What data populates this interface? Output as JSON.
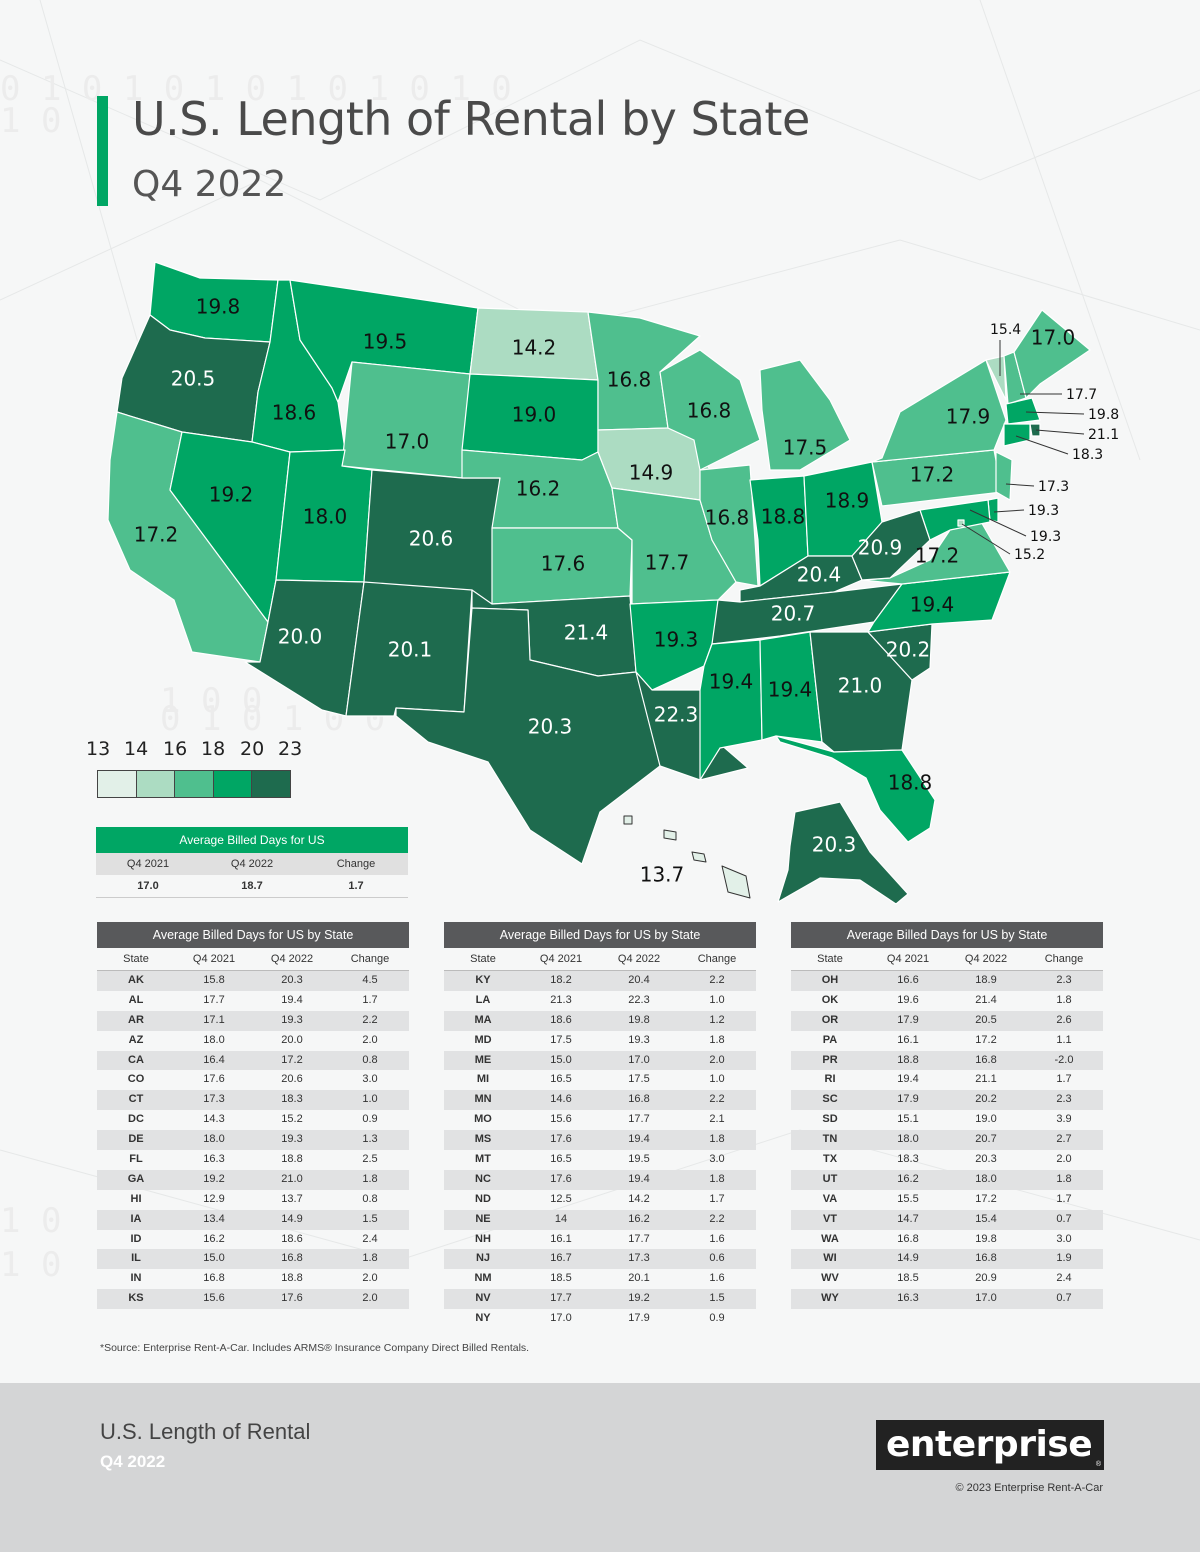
{
  "title": "U.S. Length of Rental by State",
  "subtitle": "Q4 2022",
  "colors": {
    "accent": "#00a664",
    "bin1": "#e2f0e8",
    "bin2": "#acdcc2",
    "bin3": "#4fbf8e",
    "bin4": "#00a664",
    "bin5": "#1e6b4e",
    "table_header": "#58595b"
  },
  "legend": {
    "values": [
      "13",
      "14",
      "16",
      "18",
      "20",
      "23"
    ]
  },
  "map": {
    "labels": {
      "WA": "19.8",
      "OR": "20.5",
      "CA": "17.2",
      "ID": "18.6",
      "NV": "19.2",
      "MT": "19.5",
      "WY": "17.0",
      "UT": "18.0",
      "AZ": "20.0",
      "CO": "20.6",
      "NM": "20.1",
      "ND": "14.2",
      "SD": "19.0",
      "NE": "16.2",
      "KS": "17.6",
      "OK": "21.4",
      "TX": "20.3",
      "MN": "16.8",
      "IA": "14.9",
      "MO": "17.7",
      "AR": "19.3",
      "LA": "22.3",
      "WI": "16.8",
      "IL": "16.8",
      "MI": "17.5",
      "IN": "18.8",
      "OH": "18.9",
      "KY": "20.4",
      "TN": "20.7",
      "MS": "19.4",
      "AL": "19.4",
      "GA": "21.0",
      "FL": "18.8",
      "SC": "20.2",
      "NC": "19.4",
      "VA": "17.2",
      "WV": "20.9",
      "PA": "17.2",
      "NY": "17.9",
      "VT": "15.4",
      "ME": "17.0",
      "NH": "17.7",
      "MA": "19.8",
      "RI": "21.1",
      "CT": "18.3",
      "NJ": "17.3",
      "DE": "19.3",
      "MD": "19.3",
      "DC": "15.2",
      "AK": "20.3",
      "HI": "13.7"
    }
  },
  "us_summary": {
    "title": "Average Billed Days for US",
    "columns": [
      "Q4 2021",
      "Q4 2022",
      "Change"
    ],
    "values": [
      "17.0",
      "18.7",
      "1.7"
    ]
  },
  "state_table": {
    "title": "Average Billed Days for US by State",
    "columns": [
      "State",
      "Q4 2021",
      "Q4 2022",
      "Change"
    ],
    "groups": [
      [
        [
          "AK",
          "15.8",
          "20.3",
          "4.5"
        ],
        [
          "AL",
          "17.7",
          "19.4",
          "1.7"
        ],
        [
          "AR",
          "17.1",
          "19.3",
          "2.2"
        ],
        [
          "AZ",
          "18.0",
          "20.0",
          "2.0"
        ],
        [
          "CA",
          "16.4",
          "17.2",
          "0.8"
        ],
        [
          "CO",
          "17.6",
          "20.6",
          "3.0"
        ],
        [
          "CT",
          "17.3",
          "18.3",
          "1.0"
        ],
        [
          "DC",
          "14.3",
          "15.2",
          "0.9"
        ],
        [
          "DE",
          "18.0",
          "19.3",
          "1.3"
        ],
        [
          "FL",
          "16.3",
          "18.8",
          "2.5"
        ],
        [
          "GA",
          "19.2",
          "21.0",
          "1.8"
        ],
        [
          "HI",
          "12.9",
          "13.7",
          "0.8"
        ],
        [
          "IA",
          "13.4",
          "14.9",
          "1.5"
        ],
        [
          "ID",
          "16.2",
          "18.6",
          "2.4"
        ],
        [
          "IL",
          "15.0",
          "16.8",
          "1.8"
        ],
        [
          "IN",
          "16.8",
          "18.8",
          "2.0"
        ],
        [
          "KS",
          "15.6",
          "17.6",
          "2.0"
        ]
      ],
      [
        [
          "KY",
          "18.2",
          "20.4",
          "2.2"
        ],
        [
          "LA",
          "21.3",
          "22.3",
          "1.0"
        ],
        [
          "MA",
          "18.6",
          "19.8",
          "1.2"
        ],
        [
          "MD",
          "17.5",
          "19.3",
          "1.8"
        ],
        [
          "ME",
          "15.0",
          "17.0",
          "2.0"
        ],
        [
          "MI",
          "16.5",
          "17.5",
          "1.0"
        ],
        [
          "MN",
          "14.6",
          "16.8",
          "2.2"
        ],
        [
          "MO",
          "15.6",
          "17.7",
          "2.1"
        ],
        [
          "MS",
          "17.6",
          "19.4",
          "1.8"
        ],
        [
          "MT",
          "16.5",
          "19.5",
          "3.0"
        ],
        [
          "NC",
          "17.6",
          "19.4",
          "1.8"
        ],
        [
          "ND",
          "12.5",
          "14.2",
          "1.7"
        ],
        [
          "NE",
          "14",
          "16.2",
          "2.2"
        ],
        [
          "NH",
          "16.1",
          "17.7",
          "1.6"
        ],
        [
          "NJ",
          "16.7",
          "17.3",
          "0.6"
        ],
        [
          "NM",
          "18.5",
          "20.1",
          "1.6"
        ],
        [
          "NV",
          "17.7",
          "19.2",
          "1.5"
        ],
        [
          "NY",
          "17.0",
          "17.9",
          "0.9"
        ]
      ],
      [
        [
          "OH",
          "16.6",
          "18.9",
          "2.3"
        ],
        [
          "OK",
          "19.6",
          "21.4",
          "1.8"
        ],
        [
          "OR",
          "17.9",
          "20.5",
          "2.6"
        ],
        [
          "PA",
          "16.1",
          "17.2",
          "1.1"
        ],
        [
          "PR",
          "18.8",
          "16.8",
          "-2.0"
        ],
        [
          "RI",
          "19.4",
          "21.1",
          "1.7"
        ],
        [
          "SC",
          "17.9",
          "20.2",
          "2.3"
        ],
        [
          "SD",
          "15.1",
          "19.0",
          "3.9"
        ],
        [
          "TN",
          "18.0",
          "20.7",
          "2.7"
        ],
        [
          "TX",
          "18.3",
          "20.3",
          "2.0"
        ],
        [
          "UT",
          "16.2",
          "18.0",
          "1.8"
        ],
        [
          "VA",
          "15.5",
          "17.2",
          "1.7"
        ],
        [
          "VT",
          "14.7",
          "15.4",
          "0.7"
        ],
        [
          "WA",
          "16.8",
          "19.8",
          "3.0"
        ],
        [
          "WI",
          "14.9",
          "16.8",
          "1.9"
        ],
        [
          "WV",
          "18.5",
          "20.9",
          "2.4"
        ],
        [
          "WY",
          "16.3",
          "17.0",
          "0.7"
        ]
      ]
    ]
  },
  "source": "*Source: Enterprise Rent-A-Car. Includes ARMS® Insurance Company Direct Billed Rentals.",
  "footer": {
    "title": "U.S. Length of Rental",
    "subtitle": "Q4 2022",
    "logo": "enterprise",
    "logo_mark": "®",
    "copyright": "© 2023 Enterprise Rent-A-Car"
  }
}
